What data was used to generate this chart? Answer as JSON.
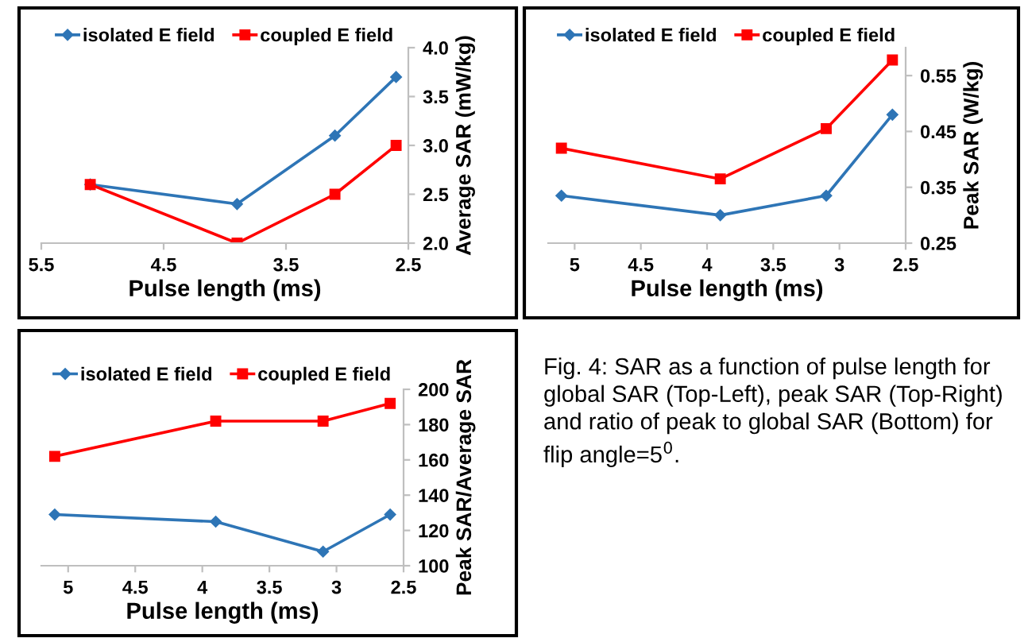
{
  "chart_data": [
    {
      "type": "line",
      "x": [
        5.1,
        3.9,
        3.1,
        2.6
      ],
      "xlabel": "Pulse length (ms)",
      "ylabel": "Average SAR (mW/kg)",
      "xlim": [
        5.5,
        2.5
      ],
      "xticks": [
        5.5,
        4.5,
        3.5,
        2.5
      ],
      "ylim": [
        2.0,
        4.0
      ],
      "yticks": [
        {
          "value": 2.0,
          "label": "2.0"
        },
        {
          "value": 2.5,
          "label": "2.5"
        },
        {
          "value": 3.0,
          "label": "3.0"
        },
        {
          "value": 3.5,
          "label": "3.5"
        },
        {
          "value": 4.0,
          "label": "4.0"
        }
      ],
      "legend": "top",
      "grid": false,
      "series": [
        {
          "name": "isolated E field",
          "color": "#2e75b6",
          "marker": "diamond",
          "values": [
            2.6,
            2.4,
            3.1,
            3.7
          ]
        },
        {
          "name": "coupled E field",
          "color": "#ff0000",
          "marker": "square",
          "values": [
            2.6,
            2.0,
            2.5,
            3.0
          ]
        }
      ]
    },
    {
      "type": "line",
      "x": [
        5.1,
        3.9,
        3.1,
        2.6
      ],
      "xlabel": "Pulse length (ms)",
      "ylabel": "Peak SAR (W/kg)",
      "xlim": [
        5.2,
        2.5
      ],
      "xticks": [
        5,
        4.5,
        4,
        3.5,
        3,
        2.5
      ],
      "ylim": [
        0.25,
        0.6
      ],
      "yticks": [
        0.25,
        0.35,
        0.45,
        0.55
      ],
      "legend": "top",
      "grid": false,
      "series": [
        {
          "name": "isolated E field",
          "color": "#2e75b6",
          "marker": "diamond",
          "values": [
            0.335,
            0.3,
            0.335,
            0.48
          ]
        },
        {
          "name": "coupled E field",
          "color": "#ff0000",
          "marker": "square",
          "values": [
            0.42,
            0.365,
            0.455,
            0.578
          ]
        }
      ]
    },
    {
      "type": "line",
      "x": [
        5.1,
        3.9,
        3.1,
        2.6
      ],
      "xlabel": "Pulse length (ms)",
      "ylabel": "Peak SAR/Average SAR",
      "xlim": [
        5.2,
        2.5
      ],
      "xticks": [
        5,
        4.5,
        4,
        3.5,
        3,
        2.5
      ],
      "ylim": [
        100,
        200
      ],
      "yticks": [
        100,
        120,
        140,
        160,
        180,
        200
      ],
      "legend": "top",
      "grid": false,
      "series": [
        {
          "name": "isolated E field",
          "color": "#2e75b6",
          "marker": "diamond",
          "values": [
            129,
            125,
            108,
            129
          ]
        },
        {
          "name": "coupled E field",
          "color": "#ff0000",
          "marker": "square",
          "values": [
            162,
            182,
            182,
            192
          ]
        }
      ]
    },
    {
      "type": "other",
      "annotations": [
        "Fig. 4: SAR as a function of pulse length for global SAR (Top-Left), peak SAR (Top-Right) and ratio of peak to global SAR (Bottom) for flip angle=5$^{0}$."
      ]
    }
  ]
}
